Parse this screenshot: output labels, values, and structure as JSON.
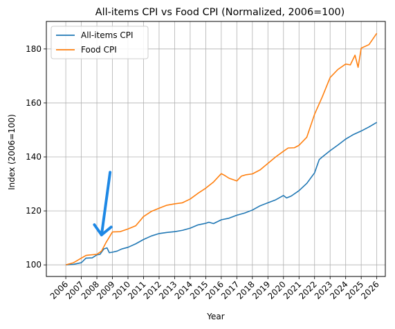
{
  "chart_data": {
    "type": "line",
    "title": "All-items CPI vs Food CPI (Normalized, 2006=100)",
    "xlabel": "Year",
    "ylabel": "Index (2006=100)",
    "xlim": [
      2004.75,
      2026.55
    ],
    "ylim": [
      95.7,
      190.2
    ],
    "x_ticks": [
      2006,
      2007,
      2008,
      2009,
      2010,
      2011,
      2012,
      2013,
      2014,
      2015,
      2016,
      2017,
      2018,
      2019,
      2020,
      2021,
      2022,
      2023,
      2024,
      2025,
      2026
    ],
    "y_ticks": [
      100,
      120,
      140,
      160,
      180
    ],
    "grid": true,
    "legend": "top-left",
    "series": [
      {
        "name": "All-items CPI",
        "color": "#1f77b4",
        "x": [
          2006.0,
          2006.5,
          2007.0,
          2007.3,
          2007.7,
          2008.0,
          2008.2,
          2008.45,
          2008.65,
          2008.8,
          2009.0,
          2009.3,
          2009.6,
          2010.0,
          2010.5,
          2011.0,
          2011.5,
          2012.0,
          2012.5,
          2013.0,
          2013.5,
          2014.0,
          2014.5,
          2015.0,
          2015.2,
          2015.5,
          2016.0,
          2016.5,
          2017.0,
          2017.5,
          2018.0,
          2018.5,
          2019.0,
          2019.5,
          2020.0,
          2020.2,
          2020.5,
          2021.0,
          2021.5,
          2022.0,
          2022.3,
          2022.5,
          2023.0,
          2023.5,
          2024.0,
          2024.5,
          2025.0,
          2025.5,
          2026.0
        ],
        "y": [
          100.0,
          100.2,
          100.8,
          102.5,
          102.6,
          103.7,
          103.9,
          105.9,
          106.3,
          104.5,
          104.7,
          105.1,
          105.9,
          106.5,
          107.8,
          109.4,
          110.7,
          111.6,
          112.0,
          112.3,
          112.8,
          113.6,
          114.8,
          115.4,
          115.8,
          115.3,
          116.7,
          117.3,
          118.4,
          119.2,
          120.3,
          121.9,
          123.0,
          124.1,
          125.7,
          124.8,
          125.5,
          127.5,
          130.2,
          134.1,
          139.0,
          140.0,
          142.3,
          144.4,
          146.6,
          148.3,
          149.6,
          151.1,
          152.8
        ]
      },
      {
        "name": "Food CPI",
        "color": "#ff7f0e",
        "x": [
          2006.0,
          2006.5,
          2007.0,
          2007.3,
          2007.6,
          2008.0,
          2008.3,
          2008.6,
          2009.0,
          2009.5,
          2010.0,
          2010.5,
          2011.0,
          2011.5,
          2012.0,
          2012.5,
          2013.0,
          2013.5,
          2014.0,
          2014.5,
          2015.0,
          2015.5,
          2016.0,
          2016.2,
          2016.5,
          2017.0,
          2017.3,
          2017.6,
          2018.0,
          2018.5,
          2019.0,
          2019.5,
          2020.0,
          2020.3,
          2020.7,
          2021.0,
          2021.5,
          2022.0,
          2022.5,
          2023.0,
          2023.5,
          2024.0,
          2024.3,
          2024.6,
          2024.8,
          2025.0,
          2025.5,
          2026.0
        ],
        "y": [
          100.0,
          100.8,
          102.5,
          103.5,
          103.7,
          103.9,
          105.1,
          108.4,
          112.2,
          112.3,
          113.3,
          114.5,
          117.9,
          119.8,
          121.0,
          122.1,
          122.6,
          123.0,
          124.4,
          126.5,
          128.4,
          130.7,
          133.8,
          133.2,
          132.1,
          131.1,
          132.9,
          133.4,
          133.7,
          135.2,
          137.6,
          140.0,
          142.1,
          143.3,
          143.4,
          144.3,
          147.3,
          155.8,
          162.3,
          169.4,
          172.4,
          174.4,
          174.1,
          177.7,
          173.2,
          180.3,
          181.6,
          185.8
        ]
      }
    ],
    "annotation": {
      "type": "arrow",
      "color": "#1e88e5",
      "tail": [
        2008.85,
        134.3
      ],
      "head": [
        2008.3,
        111.1
      ]
    }
  }
}
